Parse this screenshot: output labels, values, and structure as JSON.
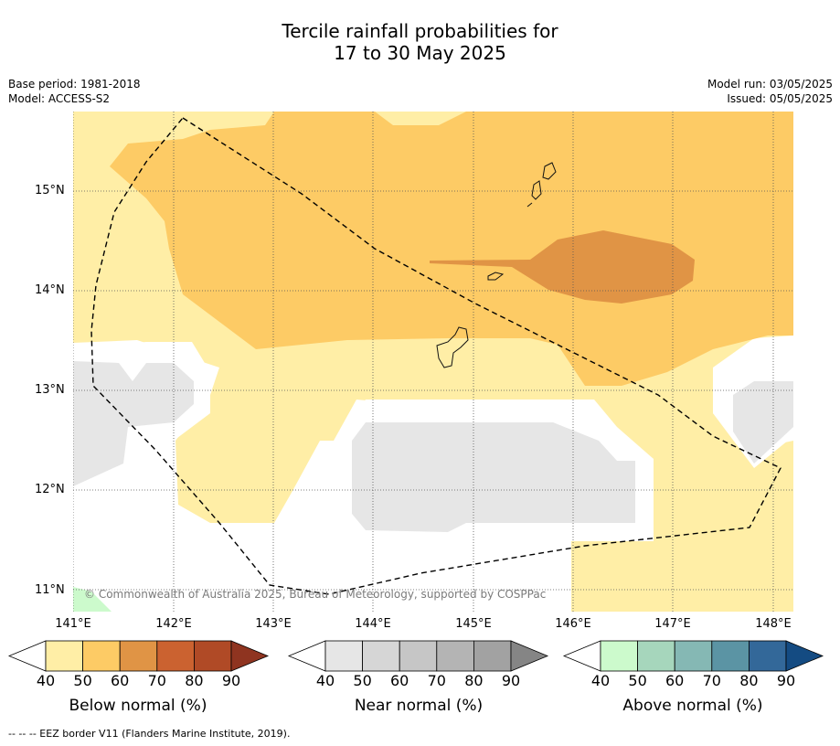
{
  "title_line1": "Tercile rainfall probabilities for",
  "title_line2": "17 to 30 May 2025",
  "base_period": "Base period: 1981-2018",
  "model": "Model: ACCESS-S2",
  "model_run": "Model run: 03/05/2025",
  "issued": "Issued: 05/05/2025",
  "copyright": "© Commonwealth of Australia 2025, Bureau of Meteorology, supported by COSPPac",
  "lat_labels": [
    "15°N",
    "14°N",
    "13°N",
    "12°N",
    "11°N"
  ],
  "lon_labels": [
    "141°E",
    "142°E",
    "143°E",
    "144°E",
    "145°E",
    "146°E",
    "147°E",
    "148°E"
  ],
  "colorbars": [
    {
      "label": "Below normal (%)",
      "ticks": [
        "40",
        "50",
        "60",
        "70",
        "80",
        "90"
      ],
      "colors": [
        "#ffeea6",
        "#fdcb65",
        "#e09445",
        "#cb6230",
        "#b04a26",
        "#8f3420"
      ]
    },
    {
      "label": "Near normal (%)",
      "ticks": [
        "40",
        "50",
        "60",
        "70",
        "80",
        "90"
      ],
      "colors": [
        "#e6e6e6",
        "#d6d6d6",
        "#c6c6c6",
        "#b4b4b4",
        "#a2a2a2",
        "#858585"
      ]
    },
    {
      "label": "Above normal (%)",
      "ticks": [
        "40",
        "50",
        "60",
        "70",
        "80",
        "90"
      ],
      "colors": [
        "#ccfacc",
        "#a6d6bc",
        "#85b8b4",
        "#5b94a4",
        "#336899",
        "#144b82"
      ]
    }
  ],
  "footer": "--  --  -- EEZ border V11 (Flanders Marine Institute, 2019)."
}
